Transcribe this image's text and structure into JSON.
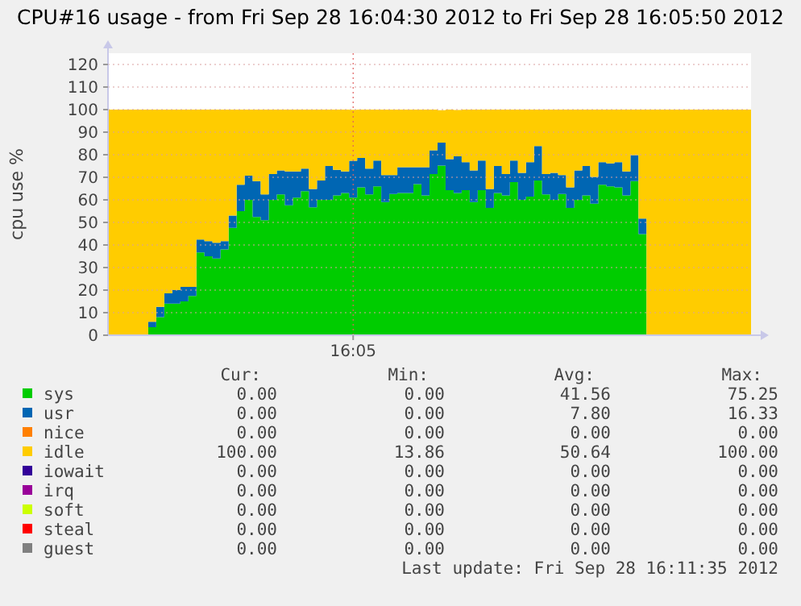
{
  "chart_data": {
    "type": "area",
    "stacked": true,
    "title": "CPU#16 usage - from Fri Sep 28 16:04:30 2012 to Fri Sep 28 16:05:50 2012",
    "ylabel": "cpu use %",
    "categories": [
      null,
      null,
      null,
      null,
      null,
      null,
      null,
      null,
      null,
      null,
      null,
      null,
      null,
      null,
      null,
      null,
      null,
      null,
      null,
      null,
      null,
      null,
      null,
      null,
      null,
      null,
      null,
      null,
      null,
      null,
      "16:05",
      null,
      null,
      null,
      null,
      null,
      null,
      null,
      null,
      null,
      null,
      null,
      null,
      null,
      null,
      null,
      null,
      null,
      null,
      null,
      null,
      null,
      null,
      null,
      null,
      null,
      null,
      null,
      null,
      null,
      null,
      null,
      null,
      null,
      null,
      null,
      null,
      null,
      null,
      null,
      null,
      null,
      null,
      null,
      null,
      null,
      null,
      null,
      null,
      null
    ],
    "series": [
      {
        "name": "sys",
        "color": "#00cc00",
        "values": [
          0,
          0,
          0,
          0,
          0,
          3.6,
          8,
          14,
          14,
          15,
          17.4,
          36.7,
          35,
          34,
          38,
          47.6,
          55,
          60,
          52.4,
          51,
          60,
          62.4,
          57.6,
          61,
          63.8,
          56.7,
          60,
          60,
          62,
          63,
          61,
          65.5,
          62.4,
          66,
          59,
          62.6,
          63,
          63,
          67,
          62,
          71.4,
          75.2,
          64.3,
          63,
          64.3,
          59,
          64.3,
          56.4,
          63,
          62,
          67.9,
          60,
          61.4,
          68.6,
          62.4,
          60,
          62.6,
          56.4,
          60,
          62,
          58.3,
          66.7,
          66,
          65.5,
          62,
          68.3,
          44.8,
          0,
          0,
          0,
          0,
          0,
          0,
          0,
          0,
          0,
          0,
          0,
          0,
          0
        ]
      },
      {
        "name": "usr",
        "color": "#0066b3",
        "values": [
          0,
          0,
          0,
          0,
          0,
          2.4,
          4.6,
          4.6,
          6,
          6.4,
          4,
          5.7,
          6.7,
          7,
          3.7,
          5.4,
          11.7,
          10.7,
          15.9,
          11.4,
          11.4,
          10.6,
          15,
          11.6,
          10,
          8.1,
          8.6,
          15,
          11.3,
          9.6,
          16.3,
          13.1,
          11.4,
          11.4,
          12,
          8.4,
          11.5,
          11.5,
          7.5,
          12.5,
          10.6,
          10.2,
          13.7,
          16.3,
          12.4,
          14,
          13.1,
          8.4,
          12,
          9.4,
          9.5,
          12,
          15.3,
          15.2,
          9,
          12,
          8.4,
          9.1,
          13,
          13,
          11.9,
          10,
          10.2,
          11.2,
          10.6,
          11.5,
          6.9,
          0,
          0,
          0,
          0,
          0,
          0,
          0,
          0,
          0,
          0,
          0,
          0,
          0
        ]
      },
      {
        "name": "nice",
        "color": "#ff8000",
        "values": [
          null,
          null,
          null,
          null,
          null,
          null,
          null,
          null,
          null,
          null,
          null,
          null,
          null,
          null,
          null,
          null,
          null,
          null,
          null,
          null,
          null,
          null,
          null,
          null,
          null,
          null,
          null,
          null,
          null,
          null,
          null,
          null,
          null,
          null,
          null,
          null,
          null,
          null,
          null,
          null,
          null,
          null,
          null,
          null,
          null,
          null,
          null,
          null,
          null,
          null,
          null,
          null,
          null,
          null,
          null,
          null,
          null,
          null,
          null,
          null,
          null,
          null,
          null,
          null,
          null,
          null,
          null,
          null,
          null,
          null,
          null,
          null,
          null,
          null,
          null,
          null,
          null,
          null,
          null,
          null
        ]
      },
      {
        "name": "idle",
        "color": "#ffcc00",
        "values": [
          100,
          100,
          100,
          100,
          100,
          94,
          87.4,
          81.4,
          80,
          78.6,
          78.6,
          57.6,
          58.3,
          59,
          58.3,
          47,
          33.3,
          29.3,
          31.7,
          37.6,
          28.6,
          27,
          27.4,
          27.4,
          26.2,
          35.2,
          31.4,
          25,
          26.7,
          27.4,
          22.6,
          21.4,
          26.2,
          22.6,
          29,
          29,
          25.5,
          25.5,
          25.5,
          25.5,
          18,
          14.3,
          22,
          20.5,
          23.3,
          27,
          22.6,
          35.2,
          25,
          28.6,
          22.6,
          28,
          23.3,
          16.2,
          28.6,
          28,
          29,
          34.5,
          27,
          25,
          29.8,
          23.3,
          23.8,
          23.3,
          27.4,
          20.2,
          48.3,
          100,
          100,
          100,
          100,
          100,
          100,
          100,
          100,
          100,
          100,
          100,
          100,
          100
        ]
      },
      {
        "name": "iowait",
        "color": "#330099",
        "values": [
          null,
          null,
          null,
          null,
          null,
          null,
          null,
          null,
          null,
          null,
          null,
          null,
          null,
          null,
          null,
          null,
          null,
          null,
          null,
          null,
          null,
          null,
          null,
          null,
          null,
          null,
          null,
          null,
          null,
          null,
          null,
          null,
          null,
          null,
          null,
          null,
          null,
          null,
          null,
          null,
          null,
          null,
          null,
          null,
          null,
          null,
          null,
          null,
          null,
          null,
          null,
          null,
          null,
          null,
          null,
          null,
          null,
          null,
          null,
          null,
          null,
          null,
          null,
          null,
          null,
          null,
          null,
          null,
          null,
          null,
          null,
          null,
          null,
          null,
          null,
          null,
          null,
          null,
          null,
          null
        ]
      },
      {
        "name": "irq",
        "color": "#990099",
        "values": [
          null,
          null,
          null,
          null,
          null,
          null,
          null,
          null,
          null,
          null,
          null,
          null,
          null,
          null,
          null,
          null,
          null,
          null,
          null,
          null,
          null,
          null,
          null,
          null,
          null,
          null,
          null,
          null,
          null,
          null,
          null,
          null,
          null,
          null,
          null,
          null,
          null,
          null,
          null,
          null,
          null,
          null,
          null,
          null,
          null,
          null,
          null,
          null,
          null,
          null,
          null,
          null,
          null,
          null,
          null,
          null,
          null,
          null,
          null,
          null,
          null,
          null,
          null,
          null,
          null,
          null,
          null,
          null,
          null,
          null,
          null,
          null,
          null,
          null,
          null,
          null,
          null,
          null,
          null,
          null
        ]
      },
      {
        "name": "soft",
        "color": "#ccff00",
        "values": [
          null,
          null,
          null,
          null,
          null,
          null,
          null,
          null,
          null,
          null,
          null,
          null,
          null,
          null,
          null,
          null,
          null,
          null,
          null,
          null,
          null,
          null,
          null,
          null,
          null,
          null,
          null,
          null,
          null,
          null,
          null,
          null,
          null,
          null,
          null,
          null,
          null,
          null,
          null,
          null,
          null,
          null,
          null,
          null,
          null,
          null,
          null,
          null,
          null,
          null,
          null,
          null,
          null,
          null,
          null,
          null,
          null,
          null,
          null,
          null,
          null,
          null,
          null,
          null,
          null,
          null,
          null,
          null,
          null,
          null,
          null,
          null,
          null,
          null,
          null,
          null,
          null,
          null,
          null,
          null
        ]
      },
      {
        "name": "steal",
        "color": "#ff0000",
        "values": [
          null,
          null,
          null,
          null,
          null,
          null,
          null,
          null,
          null,
          null,
          null,
          null,
          null,
          null,
          null,
          null,
          null,
          null,
          null,
          null,
          null,
          null,
          null,
          null,
          null,
          null,
          null,
          null,
          null,
          null,
          null,
          null,
          null,
          null,
          null,
          null,
          null,
          null,
          null,
          null,
          null,
          null,
          null,
          null,
          null,
          null,
          null,
          null,
          null,
          null,
          null,
          null,
          null,
          null,
          null,
          null,
          null,
          null,
          null,
          null,
          null,
          null,
          null,
          null,
          null,
          null,
          null,
          null,
          null,
          null,
          null,
          null,
          null,
          null,
          null,
          null,
          null,
          null,
          null,
          null
        ]
      },
      {
        "name": "guest",
        "color": "#808080",
        "values": [
          null,
          null,
          null,
          null,
          null,
          null,
          null,
          null,
          null,
          null,
          null,
          null,
          null,
          null,
          null,
          null,
          null,
          null,
          null,
          null,
          null,
          null,
          null,
          null,
          null,
          null,
          null,
          null,
          null,
          null,
          null,
          null,
          null,
          null,
          null,
          null,
          null,
          null,
          null,
          null,
          null,
          null,
          null,
          null,
          null,
          null,
          null,
          null,
          null,
          null,
          null,
          null,
          null,
          null,
          null,
          null,
          null,
          null,
          null,
          null,
          null,
          null,
          null,
          null,
          null,
          null,
          null,
          null,
          null,
          null,
          null,
          null,
          null,
          null,
          null,
          null,
          null,
          null,
          null,
          null
        ]
      }
    ],
    "ylim": [
      0,
      125
    ],
    "yticks": [
      0,
      10,
      20,
      30,
      40,
      50,
      60,
      70,
      80,
      90,
      100,
      110,
      120
    ],
    "grid": true,
    "legend": "bottom",
    "annotations": [
      "Cur:",
      "Min:",
      "Avg:",
      "Max:",
      "0.00",
      "0.00",
      "41.56",
      "75.25",
      "0.00",
      "0.00",
      "7.80",
      "16.33",
      "0.00",
      "0.00",
      "0.00",
      "0.00",
      "100.00",
      "13.86",
      "50.64",
      "100.00",
      "0.00",
      "0.00",
      "0.00",
      "0.00",
      "0.00",
      "0.00",
      "0.00",
      "0.00",
      "0.00",
      "0.00",
      "0.00",
      "0.00",
      "0.00",
      "0.00",
      "0.00",
      "0.00",
      "0.00",
      "0.00",
      "0.00",
      "0.00",
      "Last update: Fri Sep 28 16:11:35 2012"
    ]
  }
}
